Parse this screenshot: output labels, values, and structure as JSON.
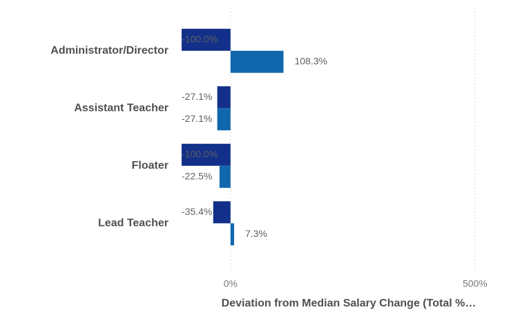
{
  "chart_data": {
    "type": "bar",
    "orientation": "horizontal",
    "x_label": "Deviation from Median Salary Change (Total %…",
    "categories": [
      "Administrator/Director",
      "Assistant Teacher",
      "Floater",
      "Lead Teacher"
    ],
    "series": [
      {
        "color": "#12308a",
        "values": [
          -100.0,
          -27.1,
          -100.0,
          -35.4
        ],
        "value_labels": [
          "-100.0%",
          "-27.1%",
          "-100.0%",
          "-35.4%"
        ]
      },
      {
        "color": "#1167ad",
        "values": [
          108.3,
          -27.1,
          -22.5,
          7.3
        ],
        "value_labels": [
          "108.3%",
          "-27.1%",
          "-22.5%",
          "7.3%"
        ]
      }
    ],
    "xlim": [
      -100,
      592
    ],
    "xticks": [
      {
        "value": 0,
        "label": "0%"
      },
      {
        "value": 500,
        "label": "500%"
      }
    ],
    "grid": true
  }
}
